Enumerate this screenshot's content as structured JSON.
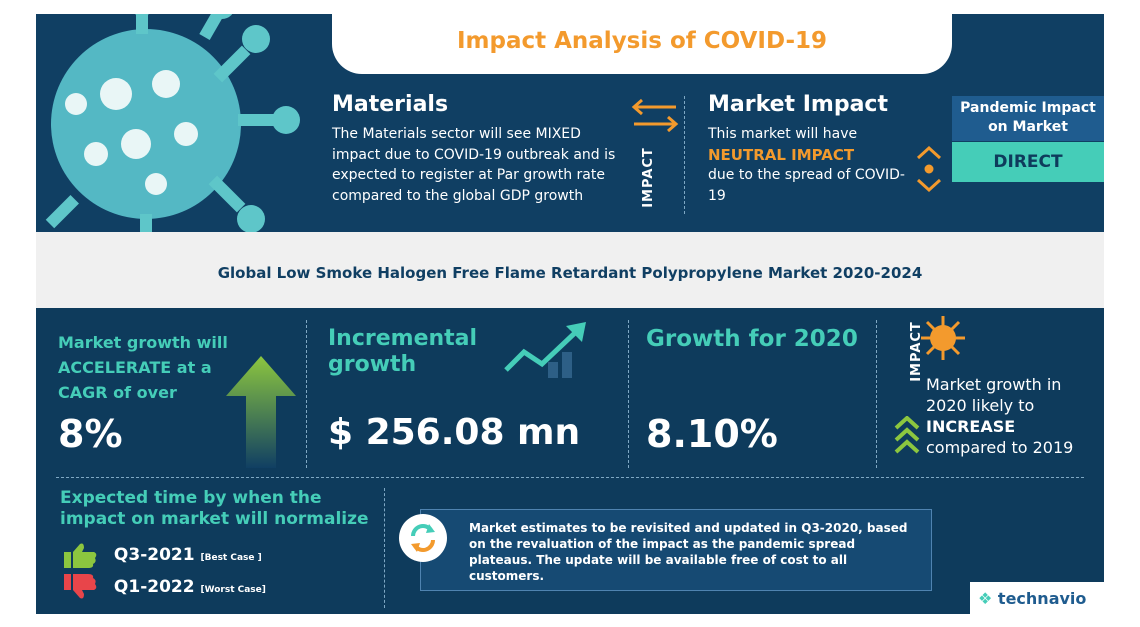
{
  "title": "Impact Analysis of COVID-19",
  "materials": {
    "heading": "Materials",
    "body": "The Materials sector will see MIXED  impact due to COVID-19 outbreak and is expected to register at Par growth rate compared to the global GDP growth"
  },
  "impact_label": "IMPACT",
  "market_impact": {
    "heading": "Market Impact",
    "line1": "This market will have",
    "highlight": "NEUTRAL IMPACT",
    "line2": "due to the spread of COVID-19"
  },
  "pandemic": {
    "label": "Pandemic Impact on Market",
    "value": "DIRECT"
  },
  "market_title": "Global Low Smoke Halogen Free Flame Retardant Polypropylene Market 2020-2024",
  "cagr": {
    "label": "Market growth will ACCELERATE at a CAGR of over",
    "value": "8%"
  },
  "incremental": {
    "label": "Incremental growth",
    "value": "$ 256.08 mn"
  },
  "growth_2020": {
    "label": "Growth for 2020",
    "value": "8.10%"
  },
  "impact_2020": {
    "label": "IMPACT",
    "line1": "Market growth in 2020 likely to",
    "highlight": "INCREASE",
    "line2": "compared to 2019"
  },
  "normalize": {
    "title": "Expected time by when the impact on market will normalize",
    "best": {
      "value": "Q3-2021",
      "tag": "[Best Case ]"
    },
    "worst": {
      "value": "Q1-2022",
      "tag": "[Worst Case]"
    }
  },
  "notice": "Market estimates to be revisited and updated in Q3-2020, based on the revaluation of the impact as the pandemic spread plateaus. The update will be available free of cost to all customers.",
  "brand": "technavio",
  "colors": {
    "navy": "#103f63",
    "teal": "#45cdb8",
    "orange": "#f39a2d",
    "green": "#8cc63f",
    "red": "#e8454a"
  }
}
